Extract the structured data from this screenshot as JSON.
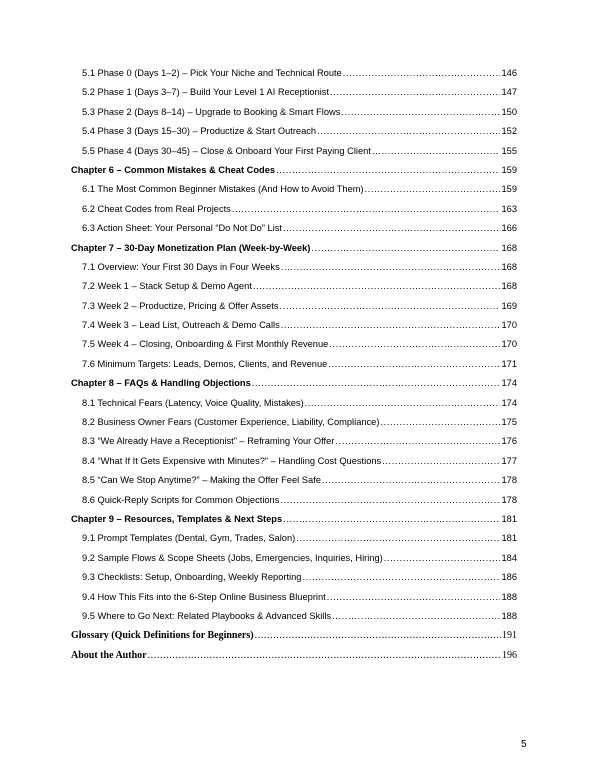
{
  "toc": [
    {
      "level": 2,
      "title": "5.1 Phase 0 (Days 1–2) – Pick Your Niche and Technical Route",
      "page": "146"
    },
    {
      "level": 2,
      "title": "5.2 Phase 1 (Days 3–7) – Build Your Level 1 AI Receptionist",
      "page": "147"
    },
    {
      "level": 2,
      "title": "5.3 Phase 2 (Days 8–14) – Upgrade to Booking & Smart Flows",
      "page": "150"
    },
    {
      "level": 2,
      "title": "5.4 Phase 3 (Days 15–30) – Productize & Start Outreach",
      "page": "152"
    },
    {
      "level": 2,
      "title": "5.5 Phase 4 (Days 30–45) – Close & Onboard Your First Paying Client",
      "page": "155"
    },
    {
      "level": 1,
      "title": "Chapter 6 – Common Mistakes & Cheat Codes",
      "page": "159"
    },
    {
      "level": 2,
      "title": "6.1 The Most Common Beginner Mistakes (And How to Avoid Them)",
      "page": "159"
    },
    {
      "level": 2,
      "title": "6.2 Cheat Codes from Real Projects",
      "page": "163"
    },
    {
      "level": 2,
      "title": "6.3 Action Sheet: Your Personal “Do Not Do” List",
      "page": "166"
    },
    {
      "level": 1,
      "title": "Chapter 7 – 30-Day Monetization Plan (Week-by-Week)",
      "page": "168"
    },
    {
      "level": 2,
      "title": "7.1 Overview: Your First 30 Days in Four Weeks",
      "page": "168"
    },
    {
      "level": 2,
      "title": "7.2 Week 1 – Stack Setup & Demo Agent",
      "page": "168"
    },
    {
      "level": 2,
      "title": "7.3 Week 2 – Productize, Pricing & Offer Assets",
      "page": "169"
    },
    {
      "level": 2,
      "title": "7.4 Week 3 – Lead List, Outreach & Demo Calls",
      "page": "170"
    },
    {
      "level": 2,
      "title": "7.5 Week 4 – Closing, Onboarding & First Monthly Revenue",
      "page": "170"
    },
    {
      "level": 2,
      "title": "7.6 Minimum Targets: Leads, Demos, Clients, and Revenue",
      "page": "171"
    },
    {
      "level": 1,
      "title": "Chapter 8 – FAQs & Handling Objections",
      "page": "174"
    },
    {
      "level": 2,
      "title": "8.1 Technical Fears (Latency, Voice Quality, Mistakes)",
      "page": "174"
    },
    {
      "level": 2,
      "title": "8.2 Business Owner Fears (Customer Experience, Liability, Compliance)",
      "page": "175"
    },
    {
      "level": 2,
      "title": "8.3 “We Already Have a Receptionist” – Reframing Your Offer",
      "page": "176"
    },
    {
      "level": 2,
      "title": "8.4 “What If It Gets Expensive with Minutes?” – Handling Cost Questions",
      "page": "177"
    },
    {
      "level": 2,
      "title": "8.5 “Can We Stop Anytime?” – Making the Offer Feel Safe",
      "page": "178"
    },
    {
      "level": 2,
      "title": "8.6 Quick-Reply Scripts for Common Objections",
      "page": "178"
    },
    {
      "level": 1,
      "title": "Chapter 9 – Resources, Templates & Next Steps",
      "page": "181"
    },
    {
      "level": 2,
      "title": "9.1 Prompt Templates (Dental, Gym, Trades, Salon)",
      "page": "181"
    },
    {
      "level": 2,
      "title": "9.2 Sample Flows & Scope Sheets (Jobs, Emergencies, Inquiries, Hiring)",
      "page": "184"
    },
    {
      "level": 2,
      "title": "9.3 Checklists: Setup, Onboarding, Weekly Reporting",
      "page": "186"
    },
    {
      "level": 2,
      "title": "9.4 How This Fits into the 6-Step Online Business Blueprint",
      "page": "188"
    },
    {
      "level": 2,
      "title": "9.5 Where to Go Next: Related Playbooks & Advanced Skills",
      "page": "188"
    },
    {
      "level": 1,
      "style": "serif",
      "title": "Glossary (Quick Definitions for Beginners)",
      "page": "191"
    },
    {
      "level": 1,
      "style": "serif",
      "title": "About the Author",
      "page": "196"
    }
  ],
  "page_number": "5"
}
